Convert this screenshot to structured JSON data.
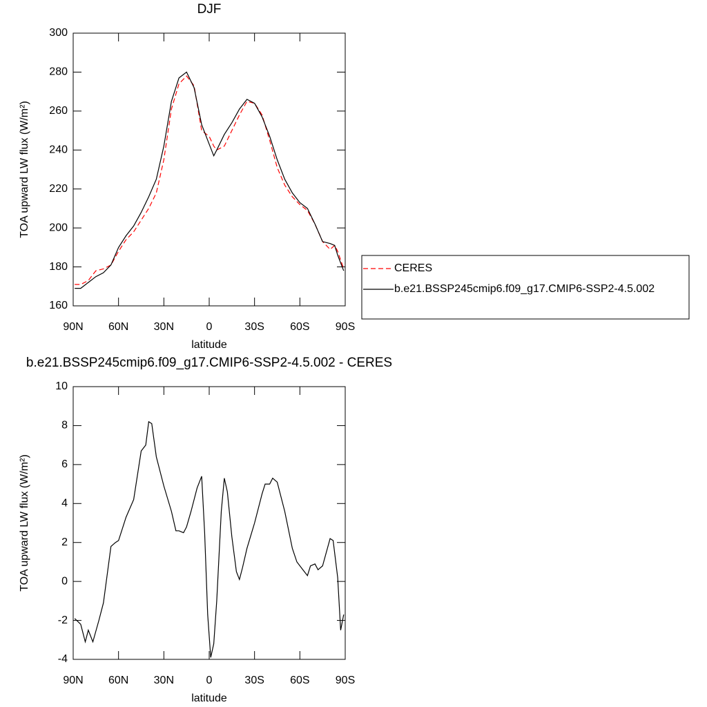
{
  "chart_data": [
    {
      "type": "line",
      "title": "DJF",
      "x_label": "latitude",
      "y_label": "TOA upward LW flux (W/m²)",
      "x": [
        89,
        85,
        80,
        75,
        70,
        65,
        60,
        55,
        50,
        45,
        40,
        35,
        30,
        25,
        20,
        15,
        10,
        5,
        0,
        -3,
        -5,
        -10,
        -15,
        -20,
        -25,
        -30,
        -35,
        -40,
        -45,
        -50,
        -55,
        -60,
        -65,
        -70,
        -75,
        -80,
        -83,
        -85,
        -89
      ],
      "series": [
        {
          "name": "CERES",
          "color": "#ff0000",
          "dash": true,
          "values": [
            171,
            171,
            173,
            178,
            179,
            181,
            188,
            194,
            198,
            204,
            210,
            218,
            235,
            261,
            274,
            278,
            273,
            250,
            247,
            242,
            240,
            242,
            250,
            258,
            265,
            264,
            258,
            245,
            231,
            222,
            216,
            212,
            209,
            202,
            193,
            189,
            191,
            188,
            179
          ]
        },
        {
          "name": "b.e21.BSSP245cmip6.f09_g17.CMIP6-SSP2-4.5.002",
          "color": "#000000",
          "dash": false,
          "values": [
            169,
            169,
            172,
            175,
            177,
            181,
            190,
            196,
            201,
            208,
            216,
            225,
            242,
            265,
            277,
            280,
            272,
            253,
            243,
            237,
            240,
            248,
            254,
            261,
            266,
            264,
            257,
            247,
            235,
            225,
            218,
            213,
            210,
            202,
            193,
            192,
            191,
            186,
            178
          ]
        }
      ],
      "xlim": [
        90,
        -90
      ],
      "xticks": [
        {
          "value": 90,
          "label": "90N"
        },
        {
          "value": 60,
          "label": "60N"
        },
        {
          "value": 30,
          "label": "30N"
        },
        0,
        {
          "value": -30,
          "label": "30S"
        },
        {
          "value": -60,
          "label": "60S"
        },
        {
          "value": -90,
          "label": "90S"
        }
      ],
      "ylim": [
        160,
        300
      ],
      "yticks": [
        160,
        180,
        200,
        220,
        240,
        260,
        280,
        300
      ],
      "legend": "right"
    },
    {
      "type": "line",
      "title": "b.e21.BSSP245cmip6.f09_g17.CMIP6-SSP2-4.5.002 - CERES",
      "x_label": "latitude",
      "y_label": "TOA upward LW flux (W/m²)",
      "x": [
        89,
        85,
        82,
        80,
        77,
        73,
        70,
        65,
        62,
        60,
        55,
        50,
        45,
        42,
        40,
        38,
        35,
        30,
        25,
        22,
        20,
        17,
        15,
        12,
        8,
        5,
        3,
        1,
        -1,
        -3,
        -5,
        -8,
        -10,
        -12,
        -15,
        -18,
        -20,
        -22,
        -25,
        -30,
        -35,
        -37,
        -40,
        -42,
        -45,
        -50,
        -55,
        -58,
        -62,
        -65,
        -67,
        -70,
        -72,
        -75,
        -80,
        -82,
        -85,
        -87,
        -89
      ],
      "series": [
        {
          "name": "b.e21.BSSP245cmip6.f09_g17.CMIP6-SSP2-4.5.002",
          "color": "#000000",
          "dash": false,
          "values": [
            -1.9,
            -2.2,
            -3.1,
            -2.5,
            -3.1,
            -2,
            -1.1,
            1.8,
            2,
            2.1,
            3.3,
            4.2,
            6.7,
            7,
            8.2,
            8.1,
            6.4,
            4.9,
            3.6,
            2.6,
            2.6,
            2.5,
            2.8,
            3.6,
            4.8,
            5.4,
            2.5,
            -1.7,
            -3.9,
            -3.2,
            -1,
            3.6,
            5.3,
            4.6,
            2.3,
            0.5,
            0.1,
            0.7,
            1.7,
            3,
            4.5,
            5,
            5,
            5.3,
            5.1,
            3.6,
            1.7,
            1,
            0.6,
            0.3,
            0.8,
            0.9,
            0.6,
            0.8,
            2.2,
            2.1,
            0.2,
            -2.5,
            -1.7
          ]
        }
      ],
      "xlim": [
        90,
        -90
      ],
      "xticks": [
        {
          "value": 90,
          "label": "90N"
        },
        {
          "value": 60,
          "label": "60N"
        },
        {
          "value": 30,
          "label": "30N"
        },
        0,
        {
          "value": -30,
          "label": "30S"
        },
        {
          "value": -60,
          "label": "60S"
        },
        {
          "value": -90,
          "label": "90S"
        }
      ],
      "ylim": [
        -4,
        10
      ],
      "yticks": [
        -4,
        -2,
        0,
        2,
        4,
        6,
        8,
        10
      ]
    }
  ]
}
